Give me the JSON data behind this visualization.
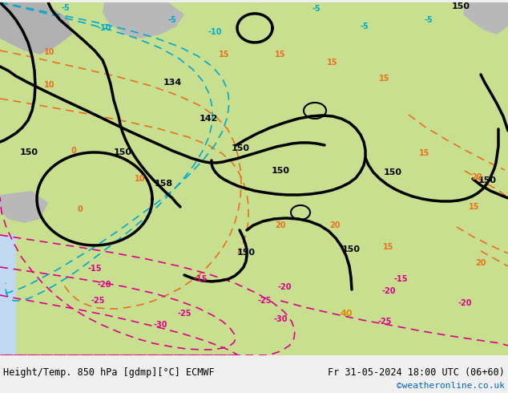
{
  "title_left": "Height/Temp. 850 hPa [gdmp][°C] ECMWF",
  "title_right": "Fr 31-05-2024 18:00 UTC (06+60)",
  "credit": "©weatheronline.co.uk",
  "credit_color": "#0066cc",
  "background_color": "#f0f0f0",
  "map_bg_green": "#c8df90",
  "map_bg_light_green": "#daeaa0",
  "gray_color": "#b0b0b0",
  "ocean_color": "#c8dff0",
  "figsize": [
    6.34,
    4.9
  ],
  "dpi": 100,
  "black_lw": 2.5,
  "temp_lw": 1.2,
  "orange_color": "#e87020",
  "cyan_color": "#00aacc",
  "magenta_color": "#dd0088",
  "green_label_color": "#44aa00",
  "label_50_color": "#dd4400"
}
